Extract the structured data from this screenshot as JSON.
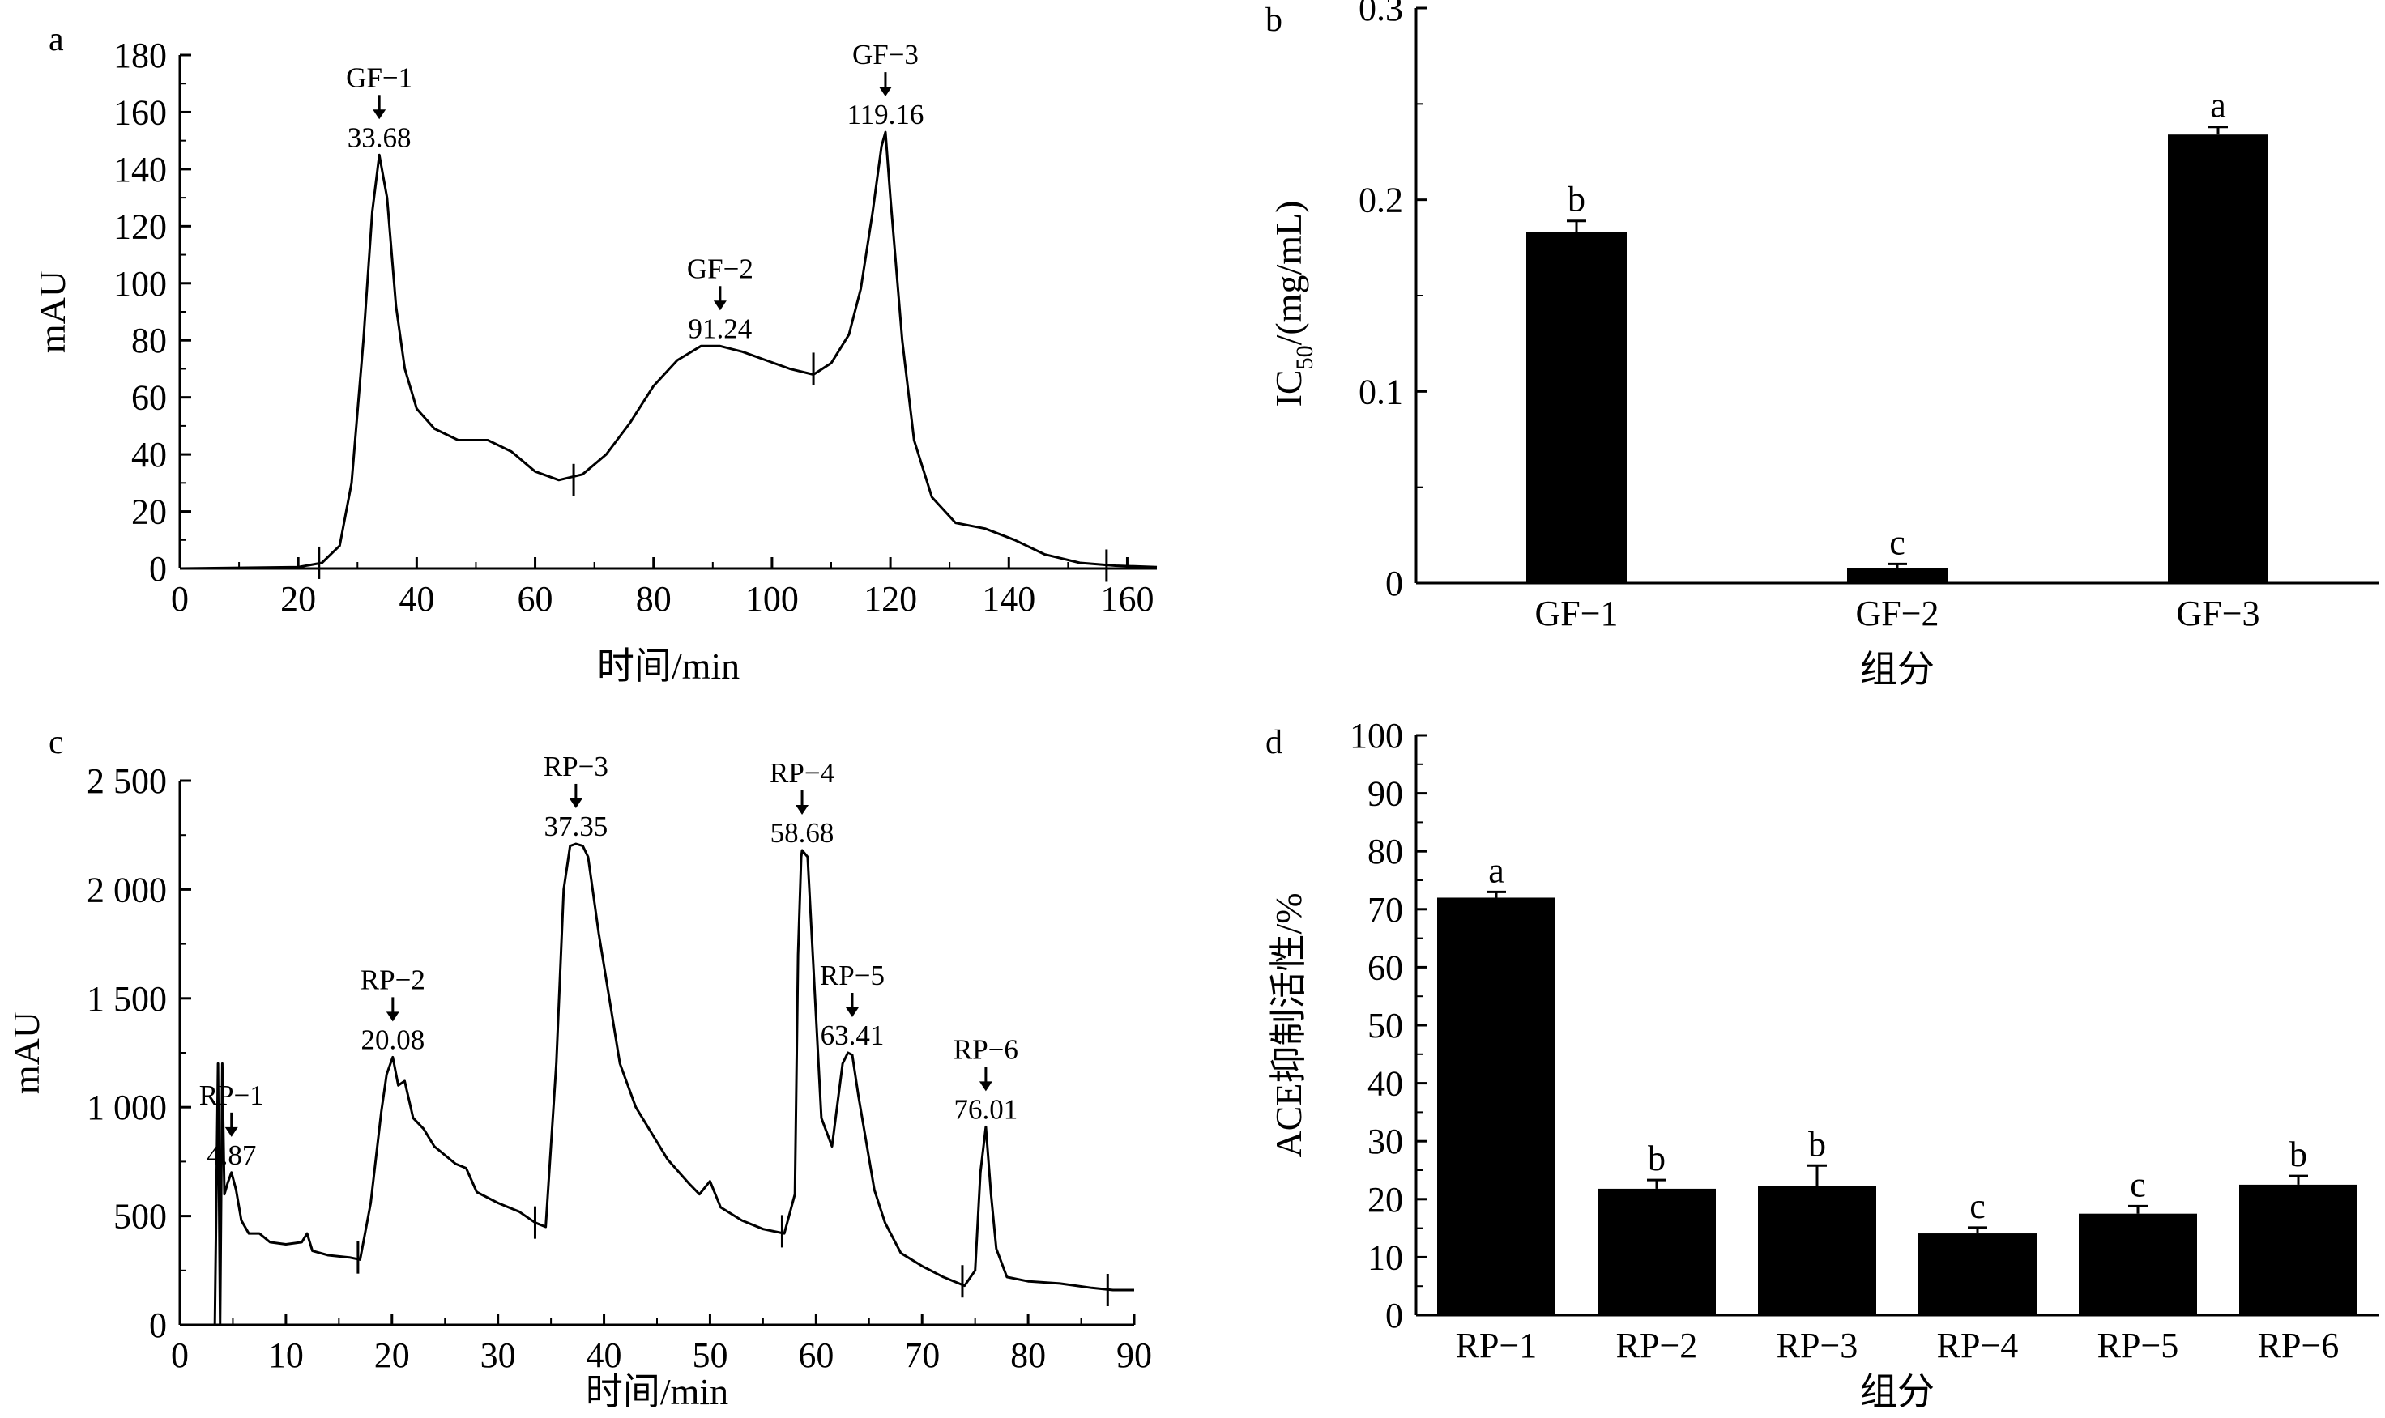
{
  "chart_data": [
    {
      "panel": "a",
      "type": "line",
      "ylabel": "mAU",
      "xlabel": "时间/min",
      "xlim": [
        0,
        165
      ],
      "ylim": [
        0,
        180
      ],
      "xticks": [
        0,
        20,
        40,
        60,
        80,
        100,
        120,
        140,
        160
      ],
      "xtick_labels": [
        "0",
        "20",
        "40",
        "60",
        "80",
        "100",
        "120",
        "140",
        "160"
      ],
      "yticks": [
        0,
        20,
        40,
        60,
        80,
        100,
        120,
        140,
        160,
        180
      ],
      "ytick_labels": [
        "0",
        "20",
        "40",
        "60",
        "80",
        "100",
        "120",
        "140",
        "160",
        "180"
      ],
      "series": [
        {
          "x": [
            0,
            20,
            24,
            27,
            29,
            31,
            32.5,
            33.68,
            35,
            36.5,
            38,
            40,
            43,
            47,
            52,
            56,
            60,
            64,
            68,
            72,
            76,
            80,
            84,
            88,
            91.24,
            95,
            99,
            103,
            107,
            110,
            113,
            115,
            117,
            118.5,
            119.16,
            120,
            122,
            124,
            127,
            131,
            136,
            141,
            146,
            152,
            158,
            165
          ],
          "y": [
            0,
            0.5,
            2,
            8,
            30,
            80,
            125,
            145,
            130,
            92,
            70,
            56,
            49,
            45,
            45,
            41,
            34,
            31,
            33,
            40,
            51,
            64,
            73,
            78,
            78,
            76,
            73,
            70,
            68,
            72,
            82,
            98,
            125,
            148,
            153,
            130,
            80,
            45,
            25,
            16,
            14,
            10,
            5,
            2,
            1,
            0.5
          ]
        }
      ],
      "peak_labels": [
        {
          "name": "GF−1",
          "value": "33.68",
          "x": 33.68,
          "y": 145
        },
        {
          "name": "GF−2",
          "value": "91.24",
          "x": 91.24,
          "y": 78
        },
        {
          "name": "GF−3",
          "value": "119.16",
          "x": 119.16,
          "y": 153
        }
      ],
      "dividers": [
        {
          "x": 23.5,
          "y": 2
        },
        {
          "x": 66.5,
          "y": 31
        },
        {
          "x": 107,
          "y": 70
        },
        {
          "x": 156.5,
          "y": 1
        }
      ]
    },
    {
      "panel": "b",
      "type": "bar",
      "ylabel": "IC50/(mg/mL)",
      "ylabel_main": "IC",
      "ylabel_sub": "50",
      "ylabel_rest": "/(mg/mL)",
      "xlabel": "组分",
      "categories": [
        "GF−1",
        "GF−2",
        "GF−3"
      ],
      "values": [
        0.183,
        0.008,
        0.234
      ],
      "errors": [
        0.006,
        0.002,
        0.004
      ],
      "significance": [
        "b",
        "c",
        "a"
      ],
      "ylim": [
        0,
        0.3
      ],
      "yticks": [
        0,
        0.1,
        0.2,
        0.3
      ],
      "ytick_labels": [
        "0",
        "0.1",
        "0.2",
        "0.3"
      ]
    },
    {
      "panel": "c",
      "type": "line",
      "ylabel": "mAU",
      "xlabel": "时间/min",
      "xlim": [
        0,
        90
      ],
      "ylim": [
        0,
        2500
      ],
      "xticks": [
        0,
        10,
        20,
        30,
        40,
        50,
        60,
        70,
        80,
        90
      ],
      "xtick_labels": [
        "0",
        "10",
        "20",
        "30",
        "40",
        "50",
        "60",
        "70",
        "80",
        "90"
      ],
      "yticks": [
        0,
        500,
        1000,
        1500,
        2000,
        2500
      ],
      "ytick_labels": [
        "0",
        "500",
        "1 000",
        "1 500",
        "2 000",
        "2 500"
      ],
      "series": [
        {
          "x": [
            0,
            3,
            3.3,
            3.6,
            3.8,
            4.0,
            4.2,
            4.5,
            4.87,
            5.3,
            5.8,
            6.5,
            7.5,
            8.5,
            10,
            11.5,
            12,
            12.5,
            14,
            16,
            17,
            18,
            19,
            19.5,
            20.08,
            20.6,
            21.2,
            22,
            23,
            24,
            26,
            27,
            28,
            30,
            32,
            33.5,
            34.5,
            35.5,
            36.2,
            36.8,
            37.35,
            38,
            38.5,
            39.5,
            40.5,
            41.5,
            43,
            44.5,
            46,
            48,
            49,
            50,
            51,
            53,
            55,
            57,
            58,
            58.3,
            58.6,
            58.68,
            59.2,
            59.8,
            60.5,
            61.5,
            62.5,
            63.0,
            63.41,
            64.0,
            64.8,
            65.5,
            66.5,
            68,
            70,
            72,
            74,
            75,
            75.5,
            76.01,
            76.5,
            77,
            78,
            80,
            83,
            86,
            88,
            90
          ],
          "y": [
            0,
            0,
            0,
            1200,
            0,
            1200,
            600,
            650,
            700,
            620,
            480,
            420,
            420,
            380,
            370,
            380,
            420,
            340,
            320,
            310,
            300,
            560,
            980,
            1150,
            1230,
            1100,
            1120,
            950,
            900,
            820,
            740,
            720,
            610,
            560,
            520,
            470,
            450,
            1200,
            2000,
            2200,
            2210,
            2200,
            2150,
            1800,
            1500,
            1200,
            1000,
            880,
            760,
            650,
            600,
            660,
            540,
            480,
            440,
            420,
            600,
            1700,
            2150,
            2180,
            2150,
            1600,
            950,
            820,
            1200,
            1250,
            1240,
            1050,
            820,
            620,
            470,
            330,
            270,
            220,
            180,
            250,
            700,
            910,
            600,
            350,
            220,
            200,
            190,
            170,
            160,
            160
          ]
        }
      ],
      "peak_labels": [
        {
          "name": "RP−1",
          "value": "4.87",
          "x": 4.87,
          "y": 700
        },
        {
          "name": "RP−2",
          "value": "20.08",
          "x": 20.08,
          "y": 1230
        },
        {
          "name": "RP−3",
          "value": "37.35",
          "x": 37.35,
          "y": 2210
        },
        {
          "name": "RP−4",
          "value": "58.68",
          "x": 58.68,
          "y": 2180
        },
        {
          "name": "RP−5",
          "value": "63.41",
          "x": 63.41,
          "y": 1250
        },
        {
          "name": "RP−6",
          "value": "76.01",
          "x": 76.01,
          "y": 910
        }
      ],
      "dividers": [
        {
          "x": 16.8,
          "y": 310
        },
        {
          "x": 33.5,
          "y": 470
        },
        {
          "x": 56.8,
          "y": 430
        },
        {
          "x": 73.8,
          "y": 200
        },
        {
          "x": 87.5,
          "y": 160
        }
      ]
    },
    {
      "panel": "d",
      "type": "bar",
      "ylabel": "ACE抑制活性/%",
      "xlabel": "组分",
      "categories": [
        "RP−1",
        "RP−2",
        "RP−3",
        "RP−4",
        "RP−5",
        "RP−6"
      ],
      "values": [
        72.0,
        21.8,
        22.3,
        14.1,
        17.5,
        22.5
      ],
      "errors": [
        1.0,
        1.5,
        3.5,
        1.0,
        1.3,
        1.5
      ],
      "significance": [
        "a",
        "b",
        "b",
        "c",
        "c",
        "b"
      ],
      "ylim": [
        0,
        100
      ],
      "yticks": [
        0,
        10,
        20,
        30,
        40,
        50,
        60,
        70,
        80,
        90,
        100
      ],
      "ytick_labels": [
        "0",
        "10",
        "20",
        "30",
        "40",
        "50",
        "60",
        "70",
        "80",
        "90",
        "100"
      ]
    }
  ]
}
